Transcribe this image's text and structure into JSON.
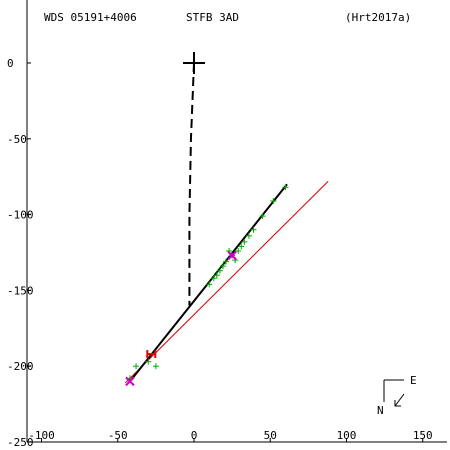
{
  "header": {
    "left": "WDS 05191+4006",
    "center": "STFB  3AD",
    "right": "(Hrt2017a)"
  },
  "compass": {
    "east_label": "E",
    "north_label": "N"
  },
  "chart_data": {
    "type": "scatter",
    "title": "",
    "xlabel": "",
    "ylabel": "",
    "xlim": [
      -100,
      160
    ],
    "ylim": [
      -250,
      30
    ],
    "x_ticks": [
      -100,
      -50,
      0,
      50,
      100,
      150
    ],
    "y_ticks": [
      0,
      -50,
      -100,
      -150,
      -200,
      -250
    ],
    "grid": false,
    "colors": {
      "axes": "#000000",
      "fit_line": "#000000",
      "dashed": "#000000",
      "red_line": "#e00000",
      "observations": "#00aa00",
      "special": "#cc00cc",
      "red_mark": "#e00000"
    },
    "primary_marker": {
      "x": 0,
      "y": 0
    },
    "dashed_path": [
      {
        "x": 0,
        "y": 0
      },
      {
        "x": -2,
        "y": -50
      },
      {
        "x": -3,
        "y": -100
      },
      {
        "x": -3,
        "y": -140
      },
      {
        "x": -3,
        "y": -160
      }
    ],
    "fit_line": [
      {
        "x": -42,
        "y": -210
      },
      {
        "x": 61,
        "y": -80
      }
    ],
    "red_line": [
      {
        "x": -45,
        "y": -211
      },
      {
        "x": 88,
        "y": -78
      }
    ],
    "observations": [
      {
        "x": -38,
        "y": -200
      },
      {
        "x": -25,
        "y": -200
      },
      {
        "x": -30,
        "y": -197
      },
      {
        "x": -42,
        "y": -208
      },
      {
        "x": 10,
        "y": -146
      },
      {
        "x": 13,
        "y": -142
      },
      {
        "x": 15,
        "y": -140
      },
      {
        "x": 17,
        "y": -137
      },
      {
        "x": 19,
        "y": -134
      },
      {
        "x": 21,
        "y": -131
      },
      {
        "x": 23,
        "y": -124
      },
      {
        "x": 25,
        "y": -127
      },
      {
        "x": 27,
        "y": -130
      },
      {
        "x": 29,
        "y": -124
      },
      {
        "x": 31,
        "y": -121
      },
      {
        "x": 33,
        "y": -118
      },
      {
        "x": 36,
        "y": -114
      },
      {
        "x": 39,
        "y": -110
      },
      {
        "x": 45,
        "y": -101
      },
      {
        "x": 52,
        "y": -91
      },
      {
        "x": 60,
        "y": -82
      }
    ],
    "special_points": [
      {
        "x": -42,
        "y": -210
      },
      {
        "x": 25,
        "y": -127
      }
    ],
    "red_marker": {
      "x": -28,
      "y": -192
    }
  }
}
